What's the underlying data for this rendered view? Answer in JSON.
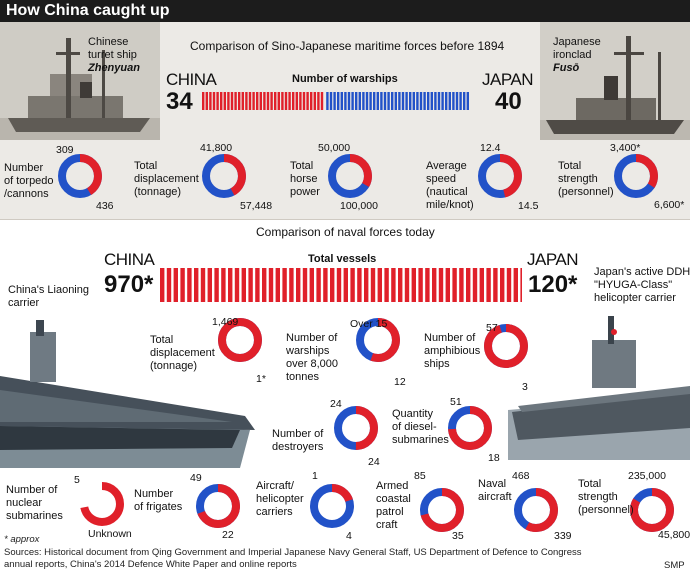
{
  "title": "How China caught up",
  "colors": {
    "china": "#e0202a",
    "japan": "#2252c8"
  },
  "section1": {
    "heading": "Comparison of Sino-Japanese maritime forces before 1894",
    "china_label": "CHINA",
    "japan_label": "JAPAN",
    "warships_heading": "Number of warships",
    "china_ship_caption": {
      "line1": "Chinese",
      "line2": "turret ship",
      "name": "Zhenyuan"
    },
    "japan_ship_caption": {
      "line1": "Japanese",
      "line2": "ironclad",
      "name": "Fusō"
    }
  },
  "section2": {
    "heading": "Comparison of naval forces today",
    "china_label": "CHINA",
    "japan_label": "JAPAN",
    "vessels_heading": "Total vessels",
    "china_carrier_caption": [
      "China's Liaoning",
      "carrier"
    ],
    "japan_carrier_caption": [
      "Japan's active DDH",
      "\"HYUGA-Class\"",
      "helicopter carrier"
    ]
  },
  "footnote": "* approx",
  "sources": [
    "Sources: Historical document from Qing Government and Imperial Japanese Navy General Staff, US Department of Defence to Congress",
    "annual reports, China's 2014 Defence White Paper and online reports"
  ],
  "credit": "SMP",
  "chart_data": [
    {
      "type": "bar",
      "title": "Number of warships",
      "series": [
        {
          "name": "CHINA",
          "value": 34,
          "label": "34"
        },
        {
          "name": "JAPAN",
          "value": 40,
          "label": "40"
        }
      ]
    },
    {
      "type": "pie",
      "title": "Comparison of Sino-Japanese maritime forces before 1894",
      "donuts": [
        {
          "label": [
            "Number",
            "of torpedo",
            "/cannons"
          ],
          "china": 309,
          "japan": 436,
          "china_label": "309",
          "japan_label": "436"
        },
        {
          "label": [
            "Total",
            "displacement",
            "(tonnage)"
          ],
          "china": 41800,
          "japan": 57448,
          "china_label": "41,800",
          "japan_label": "57,448"
        },
        {
          "label": [
            "Total",
            "horse",
            "power"
          ],
          "china": 50000,
          "japan": 100000,
          "china_label": "50,000",
          "japan_label": "100,000"
        },
        {
          "label": [
            "Average",
            "speed",
            "(nautical",
            "mile/knot)"
          ],
          "china": 12.4,
          "japan": 14.5,
          "china_label": "12.4",
          "japan_label": "14.5"
        },
        {
          "label": [
            "Total",
            "strength",
            "(personnel)"
          ],
          "china": 3400,
          "japan": 6600,
          "china_label": "3,400*",
          "japan_label": "6,600*"
        }
      ]
    },
    {
      "type": "bar",
      "title": "Total vessels",
      "series": [
        {
          "name": "CHINA",
          "value": 970,
          "label": "970*"
        },
        {
          "name": "JAPAN",
          "value": 120,
          "label": "120*"
        }
      ]
    },
    {
      "type": "pie",
      "title": "Comparison of naval forces today",
      "donuts": [
        {
          "label": [
            "Total",
            "displacement",
            "(tonnage)"
          ],
          "china": 1469,
          "japan": 1,
          "china_label": "1,469",
          "japan_label": "1*"
        },
        {
          "label": [
            "Number of",
            "warships",
            "over 8,000",
            "tonnes"
          ],
          "china": 15,
          "japan": 12,
          "china_label": "Over 15",
          "japan_label": "12"
        },
        {
          "label": [
            "Number of",
            "amphibious",
            "ships"
          ],
          "china": 57,
          "japan": 3,
          "china_label": "57",
          "japan_label": "3"
        },
        {
          "label": [
            "Number of",
            "destroyers"
          ],
          "china": 24,
          "japan": 24,
          "china_label": "24",
          "japan_label": "24"
        },
        {
          "label": [
            "Quantity",
            "of diesel-",
            "submarines"
          ],
          "china": 51,
          "japan": 18,
          "china_label": "51",
          "japan_label": "18"
        },
        {
          "label": [
            "Number of",
            "nuclear",
            "submarines"
          ],
          "china": 5,
          "japan": null,
          "china_label": "5",
          "japan_label": "Unknown"
        },
        {
          "label": [
            "Number",
            "of frigates"
          ],
          "china": 49,
          "japan": 22,
          "china_label": "49",
          "japan_label": "22"
        },
        {
          "label": [
            "Aircraft/",
            "helicopter",
            "carriers"
          ],
          "china": 1,
          "japan": 4,
          "china_label": "1",
          "japan_label": "4"
        },
        {
          "label": [
            "Armed",
            "coastal",
            "patrol",
            "craft"
          ],
          "china": 85,
          "japan": 35,
          "china_label": "85",
          "japan_label": "35"
        },
        {
          "label": [
            "Naval",
            "aircraft"
          ],
          "china": 468,
          "japan": 339,
          "china_label": "468",
          "japan_label": "339"
        },
        {
          "label": [
            "Total",
            "strength",
            "(personnel)"
          ],
          "china": 235000,
          "japan": 45800,
          "china_label": "235,000",
          "japan_label": "45,800"
        }
      ]
    }
  ]
}
